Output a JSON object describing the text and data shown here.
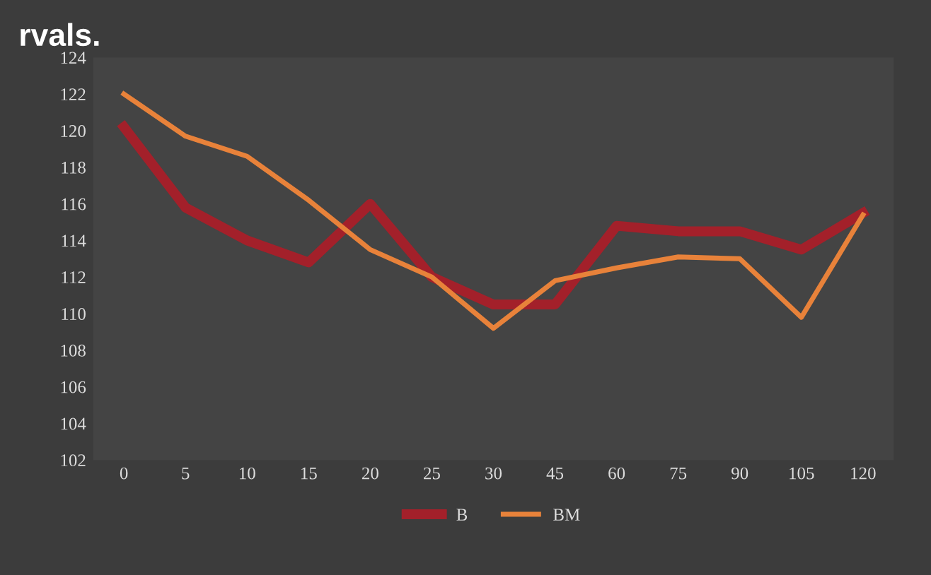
{
  "chart_data": {
    "type": "line",
    "title": "rvals.",
    "categories": [
      "0",
      "5",
      "10",
      "15",
      "20",
      "25",
      "30",
      "45",
      "60",
      "75",
      "90",
      "105",
      "120"
    ],
    "series": [
      {
        "name": "B",
        "color": "#a3202a",
        "values": [
          120.2,
          115.8,
          114.0,
          112.8,
          116.0,
          112.0,
          110.5,
          110.5,
          114.8,
          114.5,
          114.5,
          113.5,
          115.5
        ]
      },
      {
        "name": "BM",
        "color": "#e8823a",
        "values": [
          122.0,
          119.7,
          118.6,
          116.2,
          113.5,
          112.0,
          109.2,
          111.8,
          112.5,
          113.1,
          113.0,
          109.8,
          115.4
        ]
      }
    ],
    "ylim": [
      102,
      124
    ],
    "yticks": [
      102,
      104,
      106,
      108,
      110,
      112,
      114,
      116,
      118,
      120,
      122,
      124
    ],
    "grid": false,
    "legend": "bottom",
    "marker": "none",
    "line_style": "solid"
  }
}
